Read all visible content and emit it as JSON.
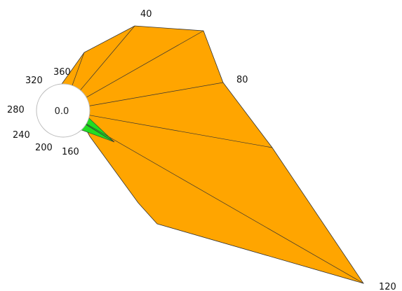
{
  "chart_data": {
    "type": "radial",
    "center_value": "0.0",
    "direction_labels": [
      "40",
      "80",
      "120",
      "160",
      "200",
      "240",
      "280",
      "320",
      "360"
    ],
    "colors": {
      "fill": "#FFA500",
      "highlight": "#22DD22",
      "edge": "#333333",
      "hole": "#FFFFFF"
    }
  }
}
